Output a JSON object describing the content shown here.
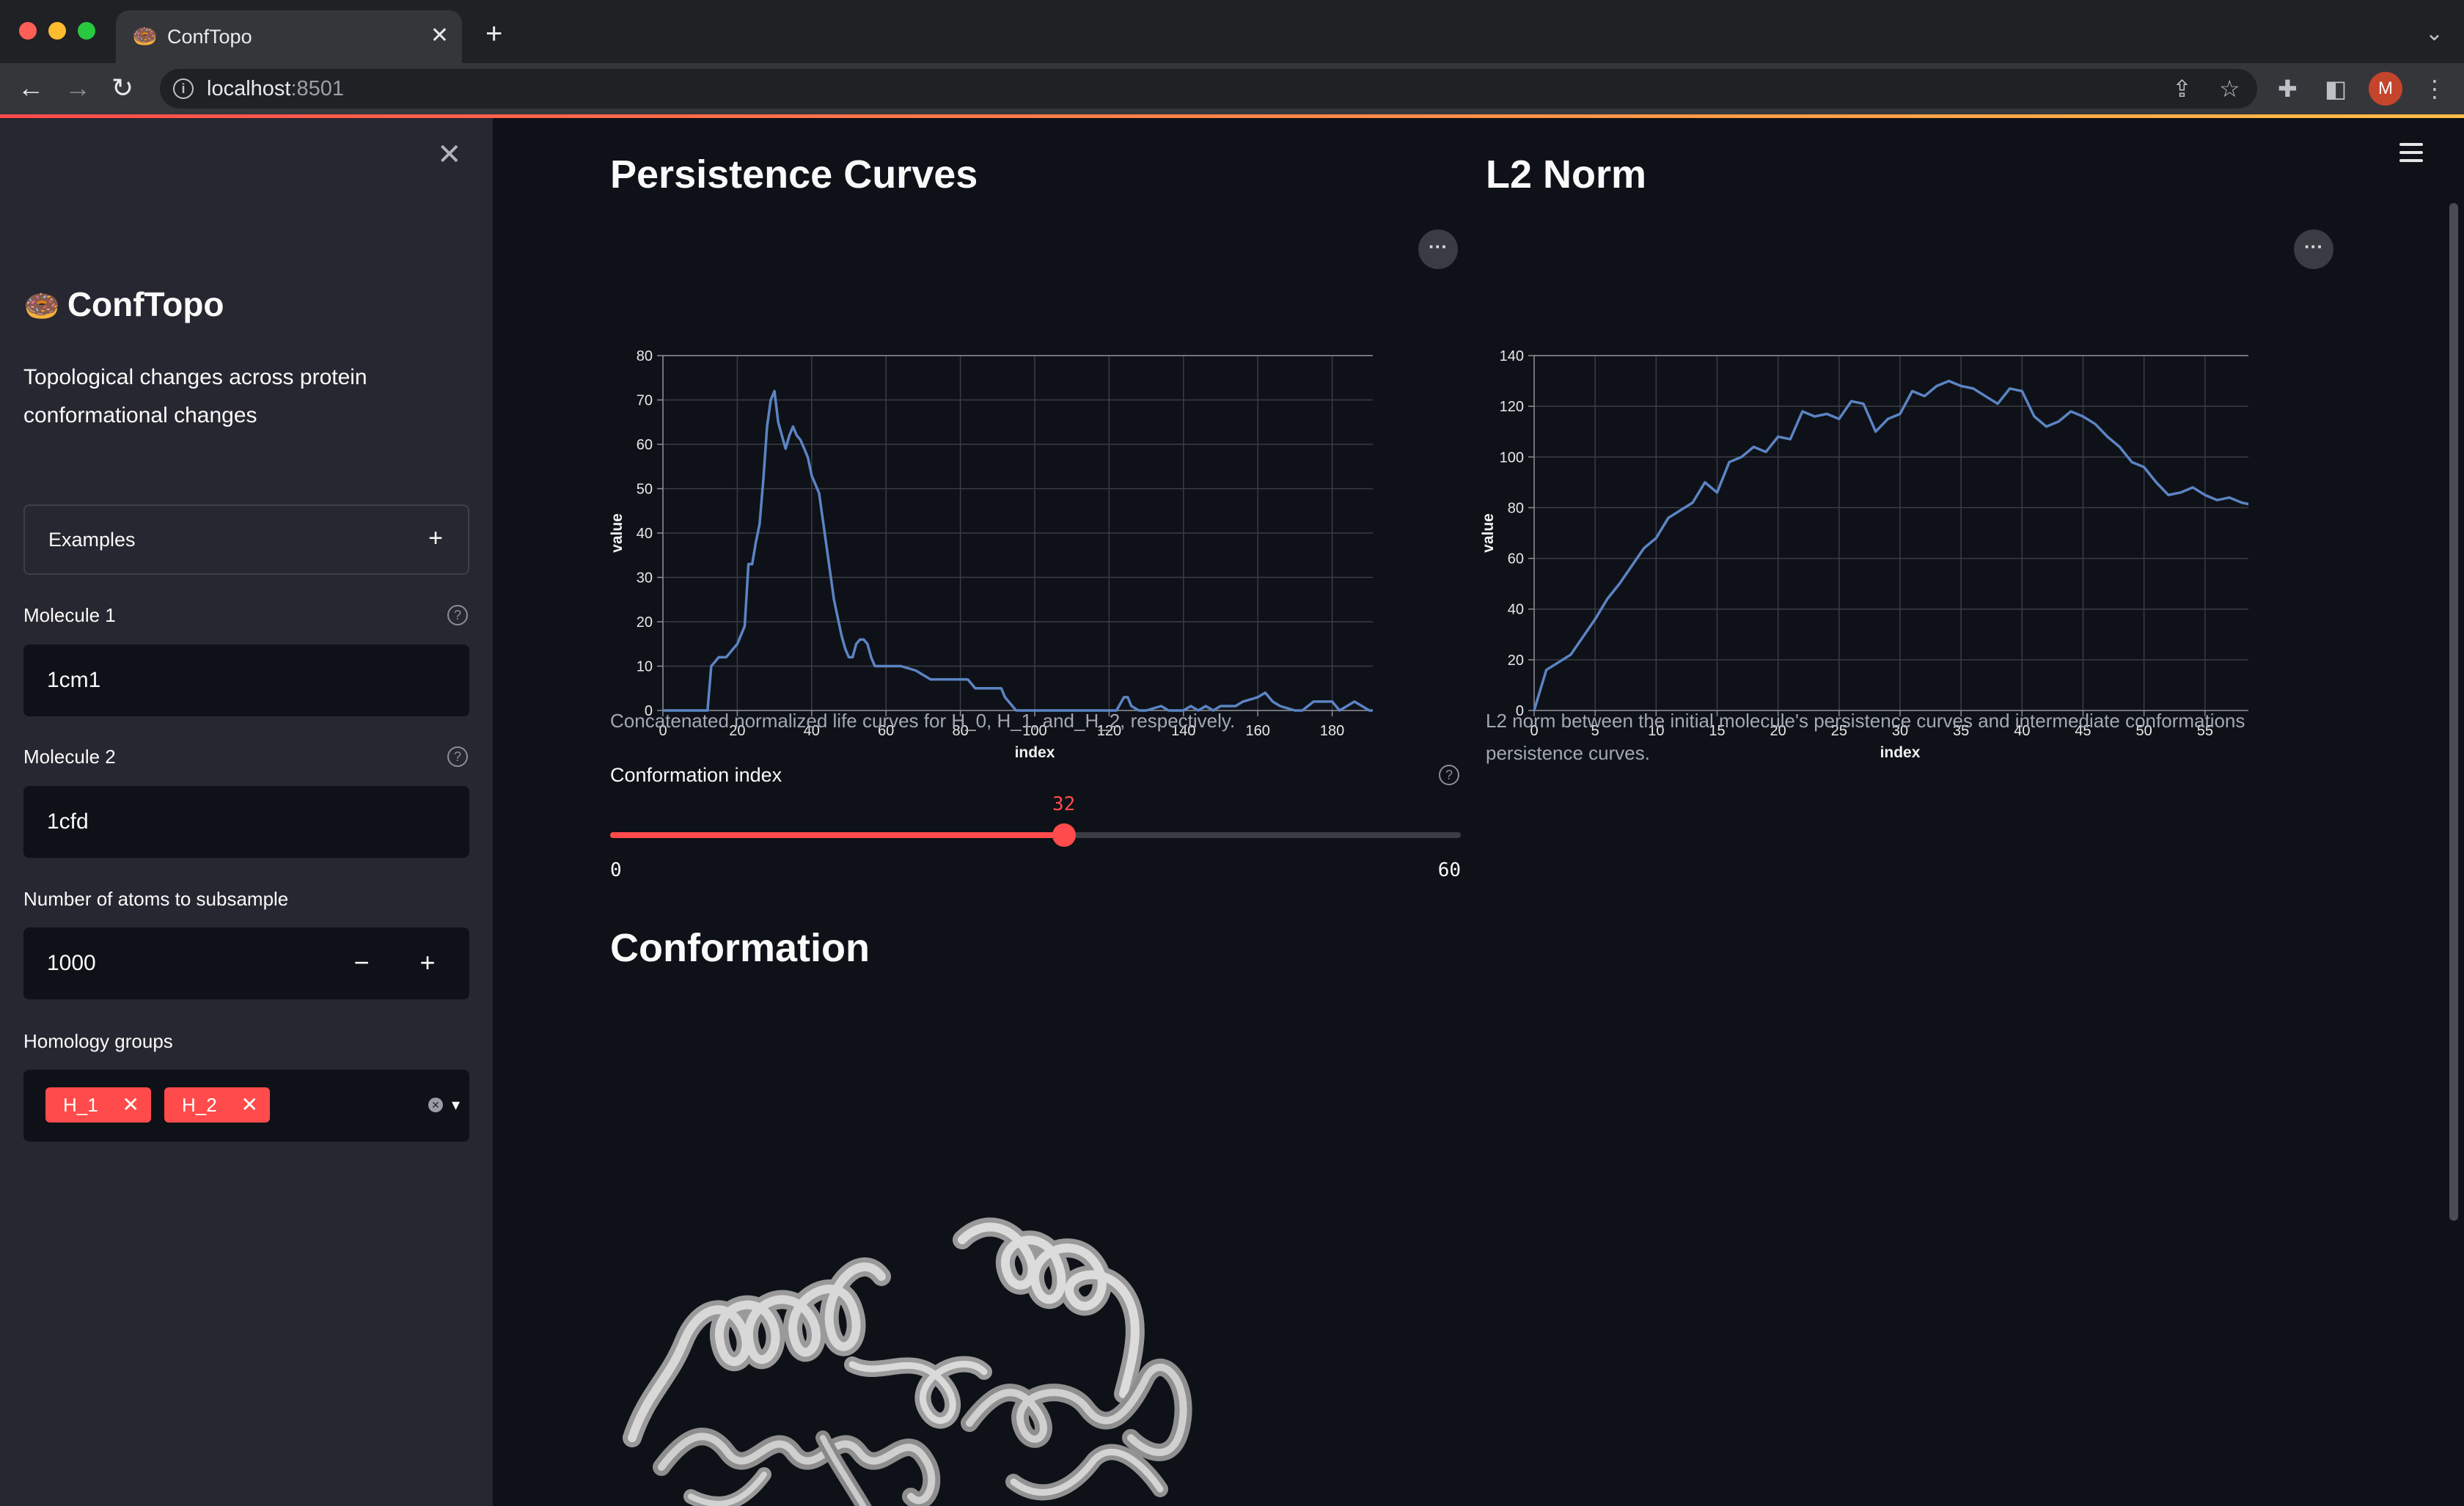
{
  "browser": {
    "tab_title": "ConfTopo",
    "tab_icon": "🍩",
    "url_host": "localhost",
    "url_port": ":8501",
    "avatar_letter": "M",
    "colors": {
      "close": "#ff5f57",
      "minimize": "#febc2e",
      "zoom": "#28c840"
    }
  },
  "sidebar": {
    "title_icon": "🍩",
    "title": "ConfTopo",
    "description": "Topological changes across protein conformational changes",
    "examples_label": "Examples",
    "molecule1": {
      "label": "Molecule 1",
      "value": "1cm1"
    },
    "molecule2": {
      "label": "Molecule 2",
      "value": "1cfd"
    },
    "atoms": {
      "label": "Number of atoms to subsample",
      "value": "1000",
      "minus": "−",
      "plus": "+"
    },
    "homology": {
      "label": "Homology groups",
      "tags": [
        "H_1",
        "H_2"
      ]
    }
  },
  "main": {
    "persistence": {
      "title": "Persistence Curves",
      "caption": "Concatenated normalized life curves for H_0, H_1, and_H_2, respectively."
    },
    "l2": {
      "title": "L2 Norm",
      "caption": "L2 norm between the initial molecule's persistence curves and intermediate conformations persistence curves."
    },
    "slider": {
      "label": "Conformation index",
      "value": 32,
      "min": 0,
      "max": 60,
      "min_label": "0",
      "max_label": "60",
      "value_label": "32"
    },
    "conformation_title": "Conformation"
  },
  "chart_data": [
    {
      "type": "line",
      "xlabel": "index",
      "ylabel": "value",
      "xlim": [
        0,
        200
      ],
      "ylim": [
        0,
        80
      ],
      "xticks": [
        0,
        20,
        40,
        60,
        80,
        100,
        120,
        140,
        160,
        180,
        200
      ],
      "yticks": [
        0,
        10,
        20,
        30,
        40,
        50,
        60,
        70,
        80
      ],
      "grid": true,
      "color": "#5b84c4",
      "x": [
        0,
        12,
        13,
        14,
        15,
        17,
        18,
        20,
        22,
        23,
        24,
        25,
        26,
        27,
        28,
        29,
        30,
        31,
        32,
        33,
        34,
        35,
        36,
        37,
        38,
        39,
        40,
        42,
        44,
        46,
        48,
        49,
        50,
        51,
        52,
        53,
        54,
        55,
        56,
        57,
        58,
        60,
        64,
        68,
        70,
        72,
        74,
        78,
        80,
        82,
        84,
        88,
        91,
        92,
        95,
        100,
        110,
        120,
        122,
        124,
        125,
        126,
        128,
        130,
        134,
        136,
        140,
        142,
        144,
        146,
        148,
        150,
        154,
        156,
        160,
        162,
        164,
        166,
        170,
        172,
        175,
        178,
        180,
        182,
        186,
        190,
        200
      ],
      "y": [
        0,
        0,
        10,
        11,
        12,
        12,
        13,
        15,
        19,
        33,
        33,
        38,
        42,
        52,
        64,
        70,
        72,
        65,
        62,
        59,
        62,
        64,
        62,
        61,
        59,
        57,
        53,
        49,
        37,
        25,
        17,
        14,
        12,
        12,
        15,
        16,
        16,
        15,
        12,
        10,
        10,
        10,
        10,
        9,
        8,
        7,
        7,
        7,
        7,
        7,
        5,
        5,
        5,
        3,
        0,
        0,
        0,
        0,
        0,
        3,
        3,
        1,
        0,
        0,
        1,
        0,
        0,
        1,
        0,
        1,
        0,
        1,
        1,
        2,
        3,
        4,
        2,
        1,
        0,
        0,
        2,
        2,
        2,
        0,
        2,
        0,
        0
      ]
    },
    {
      "type": "line",
      "xlabel": "index",
      "ylabel": "value",
      "xlim": [
        0,
        60
      ],
      "ylim": [
        0,
        140
      ],
      "xticks": [
        0,
        5,
        10,
        15,
        20,
        25,
        30,
        35,
        40,
        45,
        50,
        55,
        60
      ],
      "yticks": [
        0,
        20,
        40,
        60,
        80,
        100,
        120,
        140
      ],
      "grid": true,
      "color": "#5b84c4",
      "x": [
        0,
        1,
        2,
        3,
        4,
        5,
        6,
        7,
        8,
        9,
        10,
        11,
        12,
        13,
        14,
        15,
        16,
        17,
        18,
        19,
        20,
        21,
        22,
        23,
        24,
        25,
        26,
        27,
        28,
        29,
        30,
        31,
        32,
        33,
        34,
        35,
        36,
        37,
        38,
        39,
        40,
        41,
        42,
        43,
        44,
        45,
        46,
        47,
        48,
        49,
        50,
        51,
        52,
        53,
        54,
        55,
        56,
        57,
        58,
        59,
        60
      ],
      "y": [
        0,
        16,
        19,
        22,
        29,
        36,
        44,
        50,
        57,
        64,
        68,
        76,
        79,
        82,
        90,
        86,
        98,
        100,
        104,
        102,
        108,
        107,
        118,
        116,
        117,
        115,
        122,
        121,
        110,
        115,
        117,
        126,
        124,
        128,
        130,
        128,
        127,
        124,
        121,
        127,
        126,
        116,
        112,
        114,
        118,
        116,
        113,
        108,
        104,
        98,
        96,
        90,
        85,
        86,
        88,
        85,
        83,
        84,
        82,
        81,
        76
      ]
    }
  ]
}
